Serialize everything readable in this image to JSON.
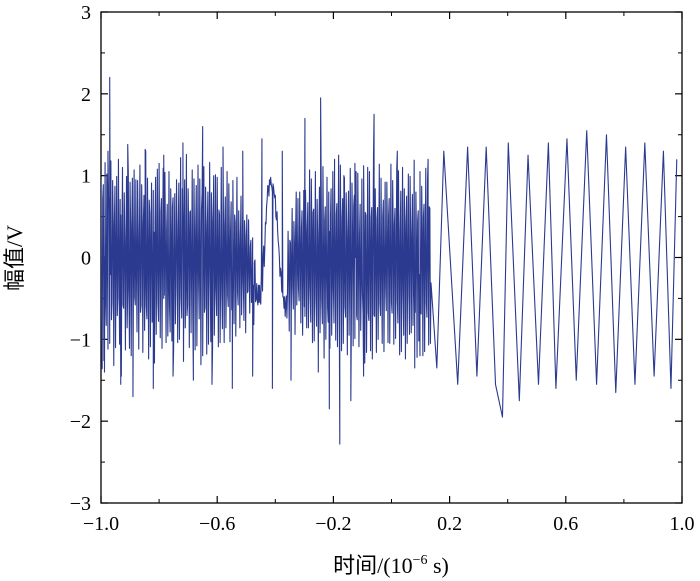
{
  "chart_data": {
    "type": "line",
    "title": "",
    "xlabel": "时间/(10",
    "xlabel_exponent": "−6",
    "xlabel_unit": " s)",
    "ylabel": "幅值/V",
    "xlim": [
      -1.0,
      1.0
    ],
    "ylim": [
      -3,
      3
    ],
    "x_ticks": [
      -1.0,
      -0.6,
      -0.2,
      0.2,
      0.6,
      1.0
    ],
    "x_tick_labels": [
      "−1.0",
      "−0.6",
      "−0.2",
      "0.2",
      "0.6",
      "1.0"
    ],
    "y_ticks": [
      -3,
      -2,
      -1,
      0,
      1,
      2,
      3
    ],
    "y_tick_labels": [
      "−3",
      "−2",
      "−1",
      "0",
      "1",
      "2",
      "3"
    ],
    "grid": false,
    "line_color": "#2b3a8f",
    "series": [
      {
        "x_start": -1.0,
        "x_step": 0.002,
        "values": [
          0.95,
          -0.63,
          -1.36,
          0.71,
          0.89,
          -1.26,
          0.01,
          1.16,
          -0.5,
          -0.83,
          1.02,
          0.09,
          -1.12,
          0.74,
          0.59,
          -1.05,
          -0.21,
          1.18,
          -0.76,
          -0.55,
          0.94,
          0.41,
          -1.32,
          0.38,
          0.87,
          -1.1,
          0.05,
          0.99,
          -0.71,
          -0.49,
          1.2,
          -0.06,
          -1.06,
          0.71,
          0.52,
          -1.45,
          0.26,
          1.1,
          -0.58,
          -0.62,
          0.79,
          0.19,
          -1.13,
          0.2,
          0.99,
          -0.86,
          -0.36,
          1.03,
          -0.41,
          -1.11,
          0.92,
          0.38,
          -1.2,
          0.33,
          0.97,
          -0.97,
          -0.08,
          1.07,
          -0.48,
          -0.58,
          0.95,
          -0.14,
          -0.91,
          0.94,
          0.33,
          -1.12,
          0.15,
          1.13,
          -0.67,
          -0.58,
          0.89,
          0.37,
          -1.16,
          0.44,
          0.76,
          -0.89,
          -0.32,
          1.3,
          -0.59,
          -0.75,
          0.97,
          0.06,
          -1.24,
          0.7,
          0.54,
          -1.09,
          0.15,
          0.91,
          -0.79,
          -0.47,
          0.82,
          0.31,
          -1.29,
          0.43,
          0.98,
          -0.94,
          -0.04,
          1.08,
          -0.54,
          -0.78,
          1.15,
          0.06,
          -0.98,
          0.56,
          0.72,
          -1.11,
          0.09,
          1.09,
          -0.5,
          -0.46,
          1.04,
          0.07,
          -1.04,
          0.34,
          0.65,
          -0.96,
          -0.42,
          1.05,
          -0.61,
          -0.91,
          0.84,
          0.19,
          -1.02,
          0.62,
          0.73,
          -1.12,
          0.1,
          0.78,
          -0.81,
          -0.36,
          0.95,
          0.17,
          -1.04,
          0.36,
          0.91,
          -1.0,
          -0.09,
          1.22,
          -0.5,
          -0.74,
          0.84,
          0.38,
          -1.27,
          0.33,
          0.95,
          -0.86,
          -0.35,
          1.26,
          -0.71,
          -0.59,
          0.84,
          0.27,
          -1.1,
          0.55,
          0.57,
          -0.92,
          -0.07,
          1.07,
          -0.71,
          -0.77,
          0.96,
          0.24,
          -1.13,
          0.34,
          0.88,
          -1.08,
          -0.13,
          1.13,
          -0.31,
          -0.75,
          0.96,
          0.05,
          -1.31,
          0.59,
          0.79,
          -1.2,
          -0.03,
          1.11,
          -0.67,
          -0.61,
          0.86,
          0.28,
          -1.18,
          0.38,
          0.8,
          -1.06,
          -0.06,
          1.16,
          -0.27,
          -1.03,
          0.79,
          0.43,
          -1.13,
          0.39,
          1.0,
          -0.95,
          -0.39,
          1.01,
          -0.37,
          -0.71,
          0.98,
          0.07,
          -1.09,
          0.58,
          0.53,
          -1.04,
          -0.23,
          1.1,
          -0.45,
          -0.87,
          0.8,
          0.26,
          -1.04,
          0.38,
          0.74,
          -0.86,
          -0.19,
          1.05,
          -0.46,
          -0.6,
          0.9,
          0.21,
          -1.03,
          0.32,
          0.68,
          -0.64,
          -0.37,
          0.94,
          -0.08,
          -0.81,
          0.52,
          0.43,
          -0.96,
          -0.04,
          0.98,
          -0.42,
          -0.58,
          0.57,
          0.11,
          -0.86,
          0.26,
          0.75,
          -0.7,
          -0.23,
          0.73,
          -0.32,
          -0.77,
          0.45,
          0.27,
          -0.92,
          0.1,
          0.52,
          -0.43,
          -0.41,
          0.46,
          -0.08,
          -0.68,
          0.13,
          0.21,
          -0.55,
          -0.41,
          0.24,
          -0.34,
          -0.82,
          -0.06,
          -0.03,
          -0.54,
          -0.51,
          -0.32,
          -0.52,
          -0.58,
          -0.34,
          -0.55,
          -0.34,
          -0.53,
          -0.57,
          -0.19,
          -0.19,
          -0.41,
          0.02,
          0.14,
          -0.11,
          0.12,
          0.43,
          0.41,
          0.63,
          0.71,
          0.88,
          0.87,
          0.75,
          0.95,
          0.89,
          0.98,
          0.89,
          0.86,
          0.8,
          0.9,
          0.86,
          0.78,
          0.73,
          0.76,
          0.5,
          0.46,
          0.56,
          0.33,
          0.2,
          0.13,
          0.01,
          -0.23,
          -0.13,
          -0.18,
          -0.41,
          -0.43,
          -0.48,
          -0.48,
          -0.62,
          -0.48,
          -0.72,
          -0.57,
          -0.47,
          -0.74,
          -0.41,
          0.32,
          -0.19,
          -0.9,
          0.21,
          0.18,
          -0.66,
          -0.05,
          0.6,
          -0.35,
          -0.63,
          0.44,
          0.16,
          -0.94,
          0.33,
          0.8,
          -0.58,
          -0.17,
          0.72,
          -0.39,
          -0.53,
          0.8,
          0.13,
          -0.8,
          0.36,
          0.57,
          -0.95,
          -0.16,
          0.82,
          -0.6,
          -0.72,
          0.82,
          0.3,
          -0.86,
          0.33,
          0.67,
          -0.86,
          -0.26,
          1.07,
          -0.37,
          -0.79,
          0.96,
          0.28,
          -1.04,
          0.55,
          0.59,
          -1.02,
          -0.05,
          1.05,
          -0.52,
          -0.84,
          0.71,
          0.18,
          -1.22,
          0.31,
          0.86,
          -0.92,
          -0.18,
          0.9,
          -0.52,
          -0.81,
          1.11,
          0.03,
          -1.23,
          0.45,
          0.62,
          -1.0,
          -0.14,
          0.98,
          -0.61,
          -0.79,
          0.8,
          0.32,
          -1.11,
          0.51,
          0.84,
          -0.95,
          -0.36,
          1.05,
          -0.38,
          -0.8,
          0.91,
          0.08,
          -1.01,
          0.53,
          0.66,
          -1.09,
          -0.05,
          1.25,
          -0.49,
          -0.72,
          1.13,
          0.2,
          -1.14,
          0.48,
          0.72,
          -1.05,
          -0.2,
          0.97,
          -0.6,
          -0.73,
          0.79,
          0.3,
          -1.19,
          0.23,
          0.81,
          -0.95,
          -0.11,
          1.09,
          -0.69,
          -0.7,
          0.91,
          0.26,
          -1.08,
          0.63,
          0.76,
          -0.99,
          -0.0,
          1.05,
          -0.71,
          -0.76,
          1.03,
          0.11,
          -1.09,
          0.27,
          0.65,
          -0.89,
          -0.32,
          0.96,
          -0.43,
          -0.68,
          1.12,
          0.24,
          -1.29,
          0.55,
          0.51,
          -1.16,
          -0.23,
          1.1,
          -0.67,
          -0.77,
          1.05,
          0.12,
          -1.14,
          0.48,
          0.61,
          -1.24,
          0.01,
          1.22,
          -0.7,
          -0.72,
          0.84,
          0.09,
          -1.16,
          0.48,
          0.61,
          -1.0,
          -0.04,
          1.14,
          -0.55,
          -0.71,
          0.97,
          -0.02,
          -1.05,
          0.51,
          0.7,
          -1.15,
          -0.13,
          0.92,
          -0.37,
          -0.65,
          0.92,
          0.24,
          -1.04,
          0.5,
          0.72,
          -1.05,
          -0.07,
          1.14,
          -0.55,
          -0.68,
          0.94,
          0.31,
          -1.06,
          0.41,
          0.6,
          -0.99,
          -0.13,
          1.08,
          -0.52,
          -0.8,
          1.06,
          0.12,
          -1.19,
          0.34,
          0.81,
          -1.15,
          -0.25,
          1.1,
          -0.43,
          -0.95,
          0.84,
          0.31,
          -1.24,
          0.42,
          0.75,
          -1.05,
          -0.05,
          1.02,
          -0.46,
          -0.94,
          0.99,
          0.29,
          -0.92,
          0.26,
          0.77,
          -0.83,
          -0.33,
          1.19,
          -0.49,
          -0.67,
          0.8,
          0.17,
          -1.22,
          0.45,
          0.57,
          -1.02,
          -0.21,
          1.05,
          -0.5,
          -0.69,
          0.87,
          0.27,
          -1.2,
          0.5,
          0.65,
          -1.15,
          -0.01,
          1.09,
          -0.56,
          -0.73,
          0.94,
          0.25,
          -1.07,
          0.62,
          0.6,
          -1.05,
          -0.31
        ]
      }
    ],
    "spikes": [
      {
        "x": -0.988,
        "y": -1.4
      },
      {
        "x": -0.976,
        "y": 1.3
      },
      {
        "x": -0.97,
        "y": 2.2
      },
      {
        "x": -0.932,
        "y": -1.55
      },
      {
        "x": -0.908,
        "y": 1.38
      },
      {
        "x": -0.89,
        "y": -1.7
      },
      {
        "x": -0.848,
        "y": 1.32
      },
      {
        "x": -0.82,
        "y": -1.6
      },
      {
        "x": -0.784,
        "y": 1.25
      },
      {
        "x": -0.752,
        "y": -1.45
      },
      {
        "x": -0.718,
        "y": 1.4
      },
      {
        "x": -0.682,
        "y": -1.5
      },
      {
        "x": -0.65,
        "y": 1.6
      },
      {
        "x": -0.618,
        "y": -1.55
      },
      {
        "x": -0.58,
        "y": 1.35
      },
      {
        "x": -0.548,
        "y": -1.6
      },
      {
        "x": -0.512,
        "y": 1.3
      },
      {
        "x": -0.478,
        "y": -1.45
      },
      {
        "x": -0.446,
        "y": 1.45
      },
      {
        "x": -0.41,
        "y": -1.6
      },
      {
        "x": -0.376,
        "y": 1.3
      },
      {
        "x": -0.346,
        "y": -1.5
      },
      {
        "x": -0.298,
        "y": 1.7
      },
      {
        "x": -0.252,
        "y": -1.4
      },
      {
        "x": -0.244,
        "y": 1.95
      },
      {
        "x": -0.214,
        "y": -1.85
      },
      {
        "x": -0.196,
        "y": 1.2
      },
      {
        "x": -0.178,
        "y": -2.28
      },
      {
        "x": -0.164,
        "y": 1.0
      },
      {
        "x": -0.14,
        "y": -1.75
      },
      {
        "x": -0.126,
        "y": 1.15
      },
      {
        "x": -0.096,
        "y": -1.45
      },
      {
        "x": -0.06,
        "y": 1.75
      },
      {
        "x": 0.02,
        "y": 1.3
      },
      {
        "x": 0.08,
        "y": -1.35
      },
      {
        "x": 0.098,
        "y": -1.2
      },
      {
        "x": 0.126,
        "y": 1.2
      },
      {
        "x": 0.156,
        "y": -1.35
      },
      {
        "x": 0.18,
        "y": 1.3
      },
      {
        "x": 0.228,
        "y": -1.55
      },
      {
        "x": 0.262,
        "y": 1.35
      },
      {
        "x": 0.294,
        "y": -1.45
      },
      {
        "x": 0.326,
        "y": 1.35
      },
      {
        "x": 0.358,
        "y": -1.55
      },
      {
        "x": 0.382,
        "y": -1.95
      },
      {
        "x": 0.402,
        "y": 1.4
      },
      {
        "x": 0.44,
        "y": -1.75
      },
      {
        "x": 0.47,
        "y": 1.25
      },
      {
        "x": 0.506,
        "y": -1.55
      },
      {
        "x": 0.54,
        "y": 1.4
      },
      {
        "x": 0.566,
        "y": -1.6
      },
      {
        "x": 0.604,
        "y": 1.45
      },
      {
        "x": 0.636,
        "y": -1.5
      },
      {
        "x": 0.672,
        "y": 1.55
      },
      {
        "x": 0.706,
        "y": -1.55
      },
      {
        "x": 0.74,
        "y": 1.5
      },
      {
        "x": 0.772,
        "y": -1.65
      },
      {
        "x": 0.806,
        "y": 1.35
      },
      {
        "x": 0.838,
        "y": -1.55
      },
      {
        "x": 0.872,
        "y": 1.4
      },
      {
        "x": 0.904,
        "y": -1.45
      },
      {
        "x": 0.936,
        "y": 1.3
      },
      {
        "x": 0.962,
        "y": -1.6
      },
      {
        "x": 0.982,
        "y": 1.2
      }
    ]
  }
}
